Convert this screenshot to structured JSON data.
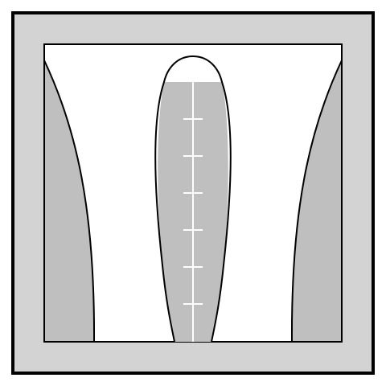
{
  "diagram": {
    "tick_count": 6,
    "colors": {
      "outer_fill": "#d3d3d3",
      "inner_fill": "#ffffff",
      "shape_fill": "#bfbfbf",
      "stroke": "#000000",
      "tick_color": "#ffffff"
    }
  }
}
